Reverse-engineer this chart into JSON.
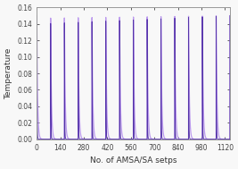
{
  "title": "",
  "xlabel": "No. of AMSA/SA setps",
  "ylabel": "Temperature",
  "xlim": [
    0,
    1150
  ],
  "ylim": [
    0,
    0.16
  ],
  "yticks": [
    0,
    0.02,
    0.04,
    0.06,
    0.08,
    0.1,
    0.12,
    0.14,
    0.16
  ],
  "xticks": [
    0,
    140,
    280,
    420,
    560,
    700,
    840,
    980,
    1120
  ],
  "line_color_dark": "#5533AA",
  "line_color_light": "#BB99EE",
  "T_max": 0.15,
  "n_cycles": 14,
  "total_steps": 1150,
  "decay_fast": 60,
  "decay_slow": 18,
  "figsize": [
    2.67,
    1.89
  ],
  "dpi": 100,
  "bg_color": "#F8F8F8"
}
